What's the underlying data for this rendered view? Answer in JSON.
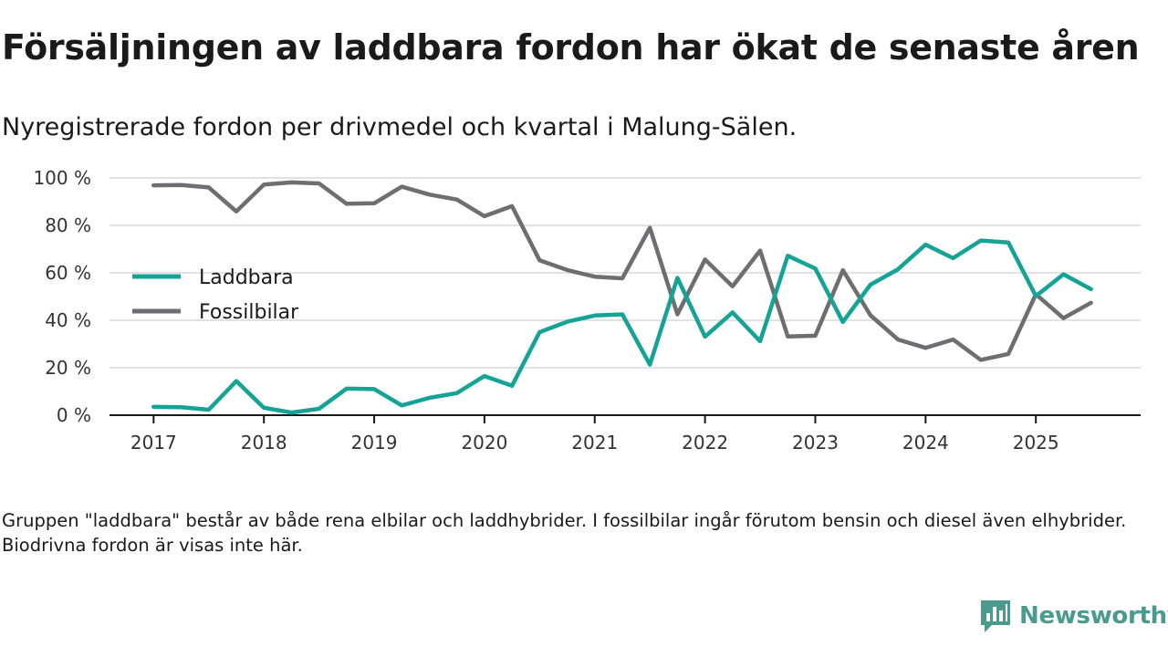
{
  "header": {
    "title": "Försäljningen av laddbara fordon har ökat de senaste åren",
    "subtitle": "Nyregistrerade fordon per drivmedel och kvartal i Malung-Sälen."
  },
  "footer": {
    "note": "Gruppen \"laddbara\" består av både rena elbilar och laddhybrider. I fossilbilar ingår förutom bensin och diesel även elhybrider. Biodrivna fordon är visas inte här.",
    "brand": "Newsworthy"
  },
  "colors": {
    "laddbara": "#14a395",
    "fossil": "#6e6d72",
    "grid": "#d9d9d9",
    "brand": "#4a9a8e"
  },
  "chart_data": {
    "type": "line",
    "title": "Försäljningen av laddbara fordon har ökat de senaste åren",
    "xlabel": "",
    "ylabel": "",
    "ylim": [
      0,
      100
    ],
    "y_ticks": [
      "0 %",
      "20 %",
      "40 %",
      "60 %",
      "80 %",
      "100 %"
    ],
    "y_tick_values": [
      0,
      20,
      40,
      60,
      80,
      100
    ],
    "x_ticks": [
      "2017",
      "2018",
      "2019",
      "2020",
      "2021",
      "2022",
      "2023",
      "2024",
      "2025"
    ],
    "x_tick_values": [
      2017,
      2018,
      2019,
      2020,
      2021,
      2022,
      2023,
      2024,
      2025
    ],
    "xlim": [
      2016.6,
      2025.95
    ],
    "legend_position": "left-middle",
    "x": [
      2017.0,
      2017.25,
      2017.5,
      2017.75,
      2018.0,
      2018.25,
      2018.5,
      2018.75,
      2019.0,
      2019.25,
      2019.5,
      2019.75,
      2020.0,
      2020.25,
      2020.5,
      2020.75,
      2021.0,
      2021.25,
      2021.5,
      2021.75,
      2022.0,
      2022.25,
      2022.5,
      2022.75,
      2023.0,
      2023.25,
      2023.5,
      2023.75,
      2024.0,
      2024.25,
      2024.5,
      2024.75,
      2025.0,
      2025.25,
      2025.5
    ],
    "series": [
      {
        "name": "Laddbara",
        "color": "#14a395",
        "values": [
          3.5,
          3.4,
          2.3,
          14.4,
          3.1,
          1.1,
          2.7,
          11.2,
          11.0,
          4.1,
          7.3,
          9.3,
          16.5,
          12.4,
          35.0,
          39.4,
          42.0,
          42.5,
          21.3,
          57.9,
          33.1,
          43.3,
          31.2,
          67.2,
          61.8,
          39.3,
          55.0,
          61.5,
          71.9,
          66.2,
          73.6,
          72.8,
          50.2,
          59.4,
          53.1
        ]
      },
      {
        "name": "Fossilbilar",
        "color": "#6e6d72",
        "values": [
          96.9,
          97.0,
          96.0,
          85.9,
          97.2,
          98.1,
          97.7,
          89.1,
          89.3,
          96.3,
          93.0,
          90.9,
          83.9,
          88.1,
          65.3,
          61.2,
          58.4,
          57.7,
          79.0,
          42.5,
          65.6,
          54.3,
          69.4,
          33.2,
          33.5,
          61.1,
          42.1,
          31.9,
          28.4,
          31.9,
          23.3,
          25.8,
          51.0,
          40.9,
          47.4
        ]
      }
    ]
  }
}
